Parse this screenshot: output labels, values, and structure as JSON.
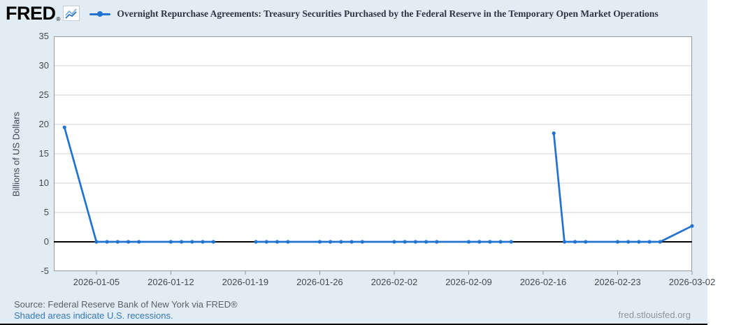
{
  "header": {
    "logo_text": "FRED",
    "registered_mark": "®"
  },
  "y_axis_label": "Billions of US Dollars",
  "footer": {
    "source": "Source: Federal Reserve Bank of New York via FRED®",
    "recessions_note": "Shaded areas indicate U.S. recessions.",
    "site": "fred.stlouisfed.org"
  },
  "colors": {
    "background": "#e2ecf4",
    "plot_background": "#ffffff",
    "series_line": "#2173cf",
    "grid": "#d0d0d0",
    "plot_border": "#999999",
    "zero_line": "#000000",
    "axis_text": "#434b54",
    "link_blue": "#3579b8"
  },
  "chart_data": {
    "type": "line",
    "title": "Overnight Repurchase Agreements: Treasury Securities Purchased by the Federal Reserve in the Temporary Open Market Operations",
    "ylabel": "Billions of US Dollars",
    "ylim": [
      -5,
      35
    ],
    "y_ticks": [
      35,
      30,
      25,
      20,
      15,
      10,
      5,
      0,
      -5
    ],
    "x_domain": [
      "2026-01-01",
      "2026-03-02"
    ],
    "x_ticks": [
      "2026-01-05",
      "2026-01-12",
      "2026-01-19",
      "2026-01-26",
      "2026-02-02",
      "2026-02-09",
      "2026-02-16",
      "2026-02-23",
      "2026-03-02"
    ],
    "grid": true,
    "legend_position": "top",
    "markers": true,
    "gap_break_days": 4,
    "series": [
      {
        "name": "Overnight Repurchase Agreements: Treasury Securities Purchased by the Federal Reserve in the Temporary Open Market Operations",
        "color": "#2173cf",
        "points": [
          [
            "2026-01-02",
            19.5
          ],
          [
            "2026-01-05",
            0
          ],
          [
            "2026-01-06",
            0
          ],
          [
            "2026-01-07",
            0
          ],
          [
            "2026-01-08",
            0
          ],
          [
            "2026-01-09",
            0
          ],
          [
            "2026-01-12",
            0
          ],
          [
            "2026-01-13",
            0
          ],
          [
            "2026-01-14",
            0
          ],
          [
            "2026-01-15",
            0
          ],
          [
            "2026-01-16",
            0
          ],
          [
            "2026-01-20",
            0
          ],
          [
            "2026-01-21",
            0
          ],
          [
            "2026-01-22",
            0
          ],
          [
            "2026-01-23",
            0
          ],
          [
            "2026-01-26",
            0
          ],
          [
            "2026-01-27",
            0
          ],
          [
            "2026-01-28",
            0
          ],
          [
            "2026-01-29",
            0
          ],
          [
            "2026-01-30",
            0
          ],
          [
            "2026-02-02",
            0
          ],
          [
            "2026-02-03",
            0
          ],
          [
            "2026-02-04",
            0
          ],
          [
            "2026-02-05",
            0
          ],
          [
            "2026-02-06",
            0
          ],
          [
            "2026-02-09",
            0
          ],
          [
            "2026-02-10",
            0
          ],
          [
            "2026-02-11",
            0
          ],
          [
            "2026-02-12",
            0
          ],
          [
            "2026-02-13",
            0
          ],
          [
            "2026-02-17",
            18.5
          ],
          [
            "2026-02-18",
            0
          ],
          [
            "2026-02-19",
            0
          ],
          [
            "2026-02-20",
            0
          ],
          [
            "2026-02-23",
            0
          ],
          [
            "2026-02-24",
            0
          ],
          [
            "2026-02-25",
            0
          ],
          [
            "2026-02-26",
            0
          ],
          [
            "2026-02-27",
            0
          ],
          [
            "2026-03-02",
            2.7
          ]
        ]
      }
    ]
  }
}
